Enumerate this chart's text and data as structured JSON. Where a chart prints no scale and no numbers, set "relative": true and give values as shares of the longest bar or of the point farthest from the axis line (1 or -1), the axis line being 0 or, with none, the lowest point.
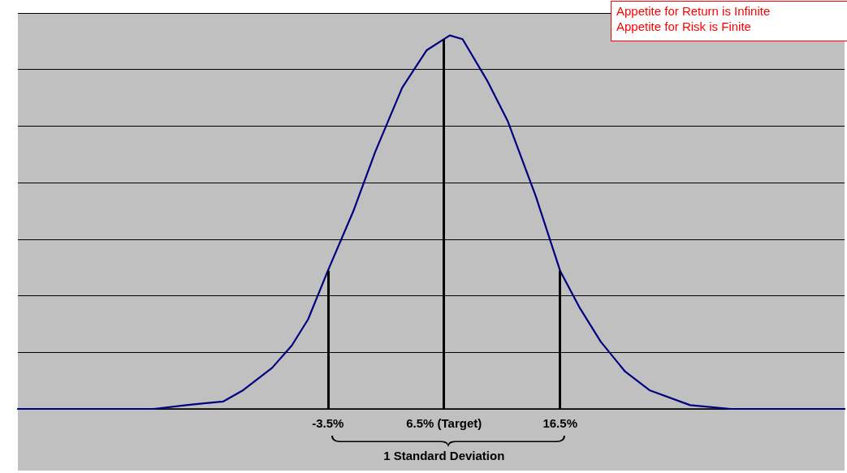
{
  "chart_data": {
    "type": "line",
    "relative": true,
    "x": [
      -30.2,
      -18.5,
      -15.7,
      -12.5,
      -10.8,
      -8.3,
      -6.6,
      -5.2,
      -3.5,
      -1.3,
      0.6,
      2.9,
      5.0,
      7.0,
      8.1,
      10.2,
      12.0,
      14.4,
      16.5,
      18.2,
      20.0,
      22.1,
      24.2,
      27.7,
      31.2,
      41.0
    ],
    "series": [
      {
        "color": "#000080",
        "values": [
          0,
          0,
          0.01,
          0.02,
          0.05,
          0.11,
          0.17,
          0.24,
          0.37,
          0.53,
          0.69,
          0.86,
          0.96,
          1.0,
          0.99,
          0.88,
          0.77,
          0.57,
          0.37,
          0.27,
          0.18,
          0.1,
          0.05,
          0.01,
          0,
          0
        ]
      }
    ],
    "xlim": [
      -30.2,
      41.0
    ],
    "xticks": [
      {
        "value": -3.5,
        "label": "-3.5%"
      },
      {
        "value": 6.5,
        "label": "6.5% (Target)"
      },
      {
        "value": 16.5,
        "label": "16.5%"
      }
    ],
    "tick_labels": "x",
    "grid": "y",
    "marker": "none",
    "line_style": "solid",
    "ref_lines": [
      {
        "axis": "x",
        "value": -3.5,
        "color": "#000000"
      },
      {
        "axis": "x",
        "value": 6.5,
        "color": "#000000"
      },
      {
        "axis": "x",
        "value": 16.5,
        "color": "#000000"
      }
    ],
    "annotations": [
      "1 Standard Deviation",
      "Appetite for Return is Infinite",
      "Appetite for Risk is Finite"
    ]
  }
}
